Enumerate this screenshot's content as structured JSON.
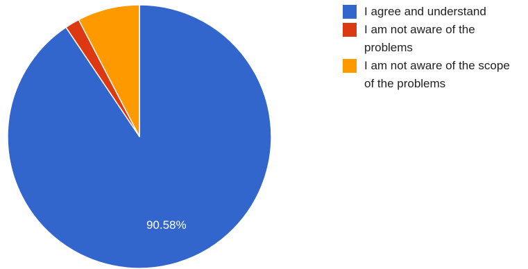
{
  "chart_data": {
    "type": "pie",
    "title": "",
    "legend_position": "right",
    "slices": [
      {
        "label": "I agree and understand",
        "value": 90.58,
        "color": "#3366cc",
        "data_label": "90.58%"
      },
      {
        "label": "I am not aware of the problems",
        "value": 1.79,
        "color": "#dc3912",
        "data_label": ""
      },
      {
        "label": "I am not aware of the scope of the problems",
        "value": 7.63,
        "color": "#ff9900",
        "data_label": ""
      }
    ]
  }
}
